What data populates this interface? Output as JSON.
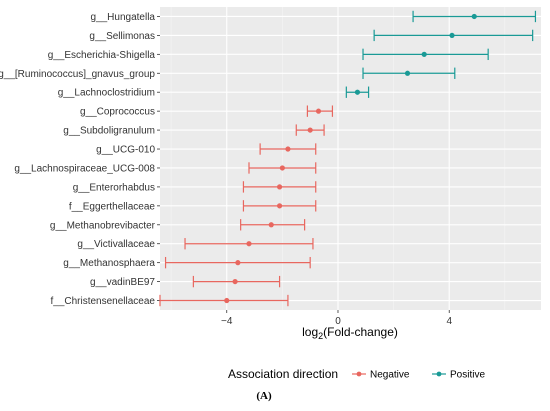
{
  "chart_data": {
    "type": "scatter",
    "subtype": "forest-plot",
    "panel_label": "(A)",
    "xlabel": "log2(Fold-change)",
    "xlim": [
      -6.4,
      7.3
    ],
    "xticks": [
      -4,
      0,
      4
    ],
    "grid": true,
    "legend": {
      "title": "Association direction",
      "position": "bottom",
      "entries": [
        {
          "name": "Negative",
          "color": "#E8675F"
        },
        {
          "name": "Positive",
          "color": "#1A9A96"
        }
      ]
    },
    "categories": [
      "g__Hungatella",
      "g__Sellimonas",
      "g__Escherichia-Shigella",
      "g__[Ruminococcus]_gnavus_group",
      "g__Lachnoclostridium",
      "g__Coprococcus",
      "g__Subdoligranulum",
      "g__UCG-010",
      "g__Lachnospiraceae_UCG-008",
      "g__Enterorhabdus",
      "f__Eggerthellaceae",
      "g__Methanobrevibacter",
      "g__Victivallaceae",
      "g__Methanosphaera",
      "g__vadinBE97",
      "f__Christensenellaceae"
    ],
    "series": [
      {
        "name": "Positive",
        "color": "#1A9A96",
        "points": [
          {
            "category": "g__Hungatella",
            "estimate": 4.9,
            "lower": 2.7,
            "upper": 7.1
          },
          {
            "category": "g__Sellimonas",
            "estimate": 4.1,
            "lower": 1.3,
            "upper": 7.0
          },
          {
            "category": "g__Escherichia-Shigella",
            "estimate": 3.1,
            "lower": 0.9,
            "upper": 5.4
          },
          {
            "category": "g__[Ruminococcus]_gnavus_group",
            "estimate": 2.5,
            "lower": 0.9,
            "upper": 4.2
          },
          {
            "category": "g__Lachnoclostridium",
            "estimate": 0.7,
            "lower": 0.3,
            "upper": 1.1
          }
        ]
      },
      {
        "name": "Negative",
        "color": "#E8675F",
        "points": [
          {
            "category": "g__Coprococcus",
            "estimate": -0.7,
            "lower": -1.1,
            "upper": -0.2
          },
          {
            "category": "g__Subdoligranulum",
            "estimate": -1.0,
            "lower": -1.5,
            "upper": -0.5
          },
          {
            "category": "g__UCG-010",
            "estimate": -1.8,
            "lower": -2.8,
            "upper": -0.8
          },
          {
            "category": "g__Lachnospiraceae_UCG-008",
            "estimate": -2.0,
            "lower": -3.2,
            "upper": -0.8
          },
          {
            "category": "g__Enterorhabdus",
            "estimate": -2.1,
            "lower": -3.4,
            "upper": -0.8
          },
          {
            "category": "f__Eggerthellaceae",
            "estimate": -2.1,
            "lower": -3.4,
            "upper": -0.8
          },
          {
            "category": "g__Methanobrevibacter",
            "estimate": -2.4,
            "lower": -3.5,
            "upper": -1.2
          },
          {
            "category": "g__Victivallaceae",
            "estimate": -3.2,
            "lower": -5.5,
            "upper": -0.9
          },
          {
            "category": "g__Methanosphaera",
            "estimate": -3.6,
            "lower": -6.2,
            "upper": -1.0
          },
          {
            "category": "g__vadinBE97",
            "estimate": -3.7,
            "lower": -5.2,
            "upper": -2.1
          },
          {
            "category": "f__Christensenellaceae",
            "estimate": -4.0,
            "lower": -6.4,
            "upper": -1.8
          }
        ]
      }
    ]
  }
}
